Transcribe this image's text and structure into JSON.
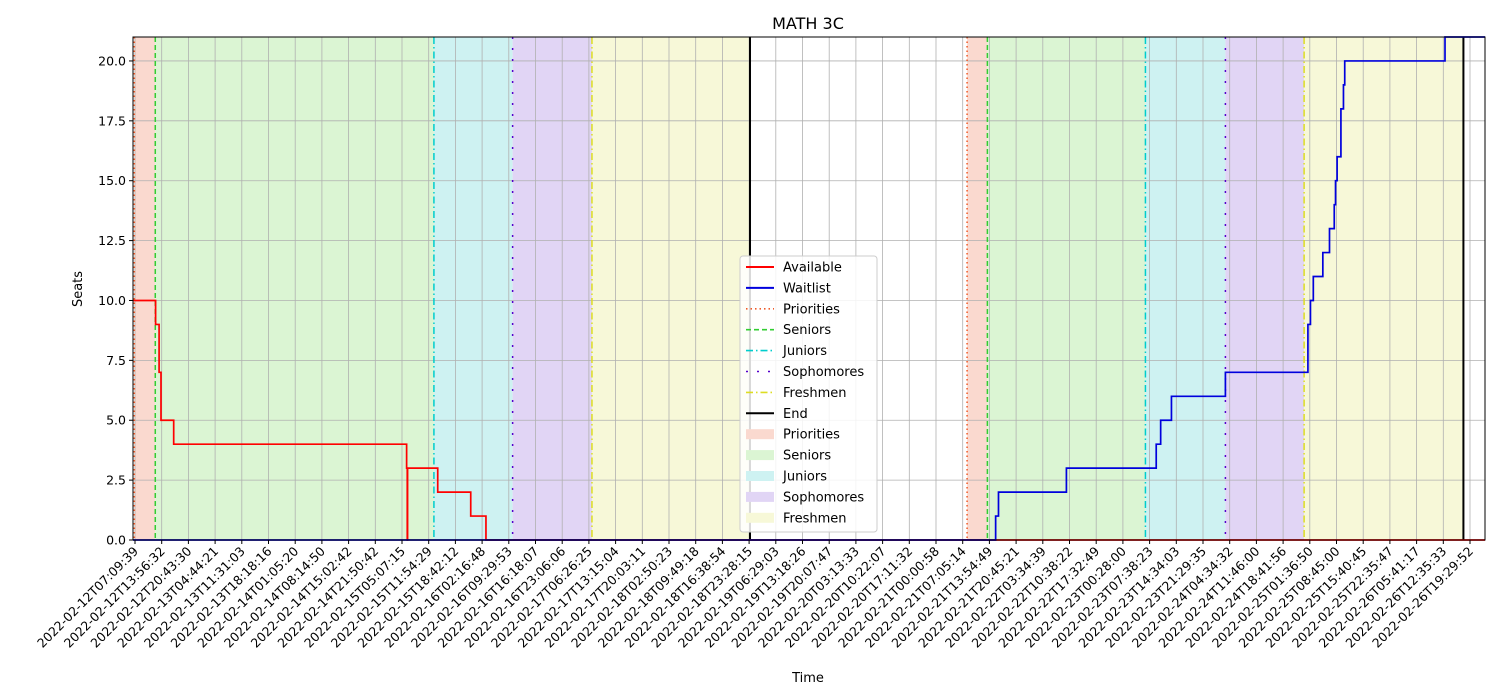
{
  "chart_data": {
    "type": "line",
    "title": "MATH 3C",
    "xlabel": "Time",
    "ylabel": "Seats",
    "ylim": [
      0,
      21
    ],
    "xlim": [
      "2022-02-12T05:49:00",
      "2022-02-27T00:50:00"
    ],
    "grid": true,
    "legend_position": "bottom-center",
    "y_ticks": [
      0.0,
      2.5,
      5.0,
      7.5,
      10.0,
      12.5,
      15.0,
      17.5,
      20.0
    ],
    "y_tick_labels": [
      "0.0",
      "2.5",
      "5.0",
      "7.5",
      "10.0",
      "12.5",
      "15.0",
      "17.5",
      "20.0"
    ],
    "x_tick_labels": [
      "2022-02-12T07:09:39",
      "2022-02-12T13:56:32",
      "2022-02-12T20:43:30",
      "2022-02-13T04:44:21",
      "2022-02-13T11:31:03",
      "2022-02-13T18:18:16",
      "2022-02-14T01:05:20",
      "2022-02-14T08:14:50",
      "2022-02-14T15:02:42",
      "2022-02-14T21:50:42",
      "2022-02-15T05:07:15",
      "2022-02-15T11:54:29",
      "2022-02-15T18:42:12",
      "2022-02-16T02:16:48",
      "2022-02-16T09:29:53",
      "2022-02-16T16:18:07",
      "2022-02-16T23:06:06",
      "2022-02-17T06:26:25",
      "2022-02-17T13:15:04",
      "2022-02-17T20:03:11",
      "2022-02-18T02:50:23",
      "2022-02-18T09:49:18",
      "2022-02-18T16:38:54",
      "2022-02-18T23:28:15",
      "2022-02-19T06:29:03",
      "2022-02-19T13:18:26",
      "2022-02-19T20:07:47",
      "2022-02-20T03:13:33",
      "2022-02-20T10:22:07",
      "2022-02-20T17:11:32",
      "2022-02-21T00:00:58",
      "2022-02-21T07:05:14",
      "2022-02-21T13:54:49",
      "2022-02-21T20:45:21",
      "2022-02-22T03:34:39",
      "2022-02-22T10:38:22",
      "2022-02-22T17:32:49",
      "2022-02-23T00:28:00",
      "2022-02-23T07:38:23",
      "2022-02-23T14:34:03",
      "2022-02-23T21:29:35",
      "2022-02-24T04:34:32",
      "2022-02-24T11:46:00",
      "2022-02-24T18:41:56",
      "2022-02-25T01:36:50",
      "2022-02-25T08:45:00",
      "2022-02-25T15:40:45",
      "2022-02-25T22:35:47",
      "2022-02-26T05:41:17",
      "2022-02-26T12:35:33",
      "2022-02-26T19:29:52"
    ],
    "colors": {
      "available": "#ff0000",
      "waitlist": "#0000dd",
      "priorities": "#f05a28",
      "seniors": "#32cd32",
      "juniors": "#00cdcd",
      "sophomores": "#5500cc",
      "freshmen": "#dddd22",
      "end": "#000000",
      "priorities_fill": "#fad9cf",
      "seniors_fill": "#dbf5d3",
      "juniors_fill": "#cef2f2",
      "sophomores_fill": "#e1d5f5",
      "freshmen_fill": "#f7f8d8",
      "grid": "#b0b0b0"
    },
    "legend": [
      {
        "label": "Available",
        "kind": "line",
        "style": "solid",
        "color_key": "available"
      },
      {
        "label": "Waitlist",
        "kind": "line",
        "style": "solid",
        "color_key": "waitlist"
      },
      {
        "label": "Priorities",
        "kind": "line",
        "style": "dotted",
        "color_key": "priorities"
      },
      {
        "label": "Seniors",
        "kind": "line",
        "style": "dashed",
        "color_key": "seniors"
      },
      {
        "label": "Juniors",
        "kind": "line",
        "style": "dashdot",
        "color_key": "juniors"
      },
      {
        "label": "Sophomores",
        "kind": "line",
        "style": "loosedash",
        "color_key": "sophomores"
      },
      {
        "label": "Freshmen",
        "kind": "line",
        "style": "dashdot",
        "color_key": "freshmen"
      },
      {
        "label": "End",
        "kind": "line",
        "style": "solid",
        "color_key": "end"
      },
      {
        "label": "Priorities",
        "kind": "patch",
        "color_key": "priorities_fill"
      },
      {
        "label": "Seniors",
        "kind": "patch",
        "color_key": "seniors_fill"
      },
      {
        "label": "Juniors",
        "kind": "patch",
        "color_key": "juniors_fill"
      },
      {
        "label": "Sophomores",
        "kind": "patch",
        "color_key": "sophomores_fill"
      },
      {
        "label": "Freshmen",
        "kind": "patch",
        "color_key": "freshmen_fill"
      }
    ],
    "periods": [
      {
        "phase": "Priorities",
        "start": "2022-02-12T06:10:00",
        "end": "2022-02-12T11:40:00"
      },
      {
        "phase": "Seniors",
        "start": "2022-02-12T11:40:00",
        "end": "2022-02-15T12:50:00"
      },
      {
        "phase": "Juniors",
        "start": "2022-02-15T12:50:00",
        "end": "2022-02-16T09:30:00"
      },
      {
        "phase": "Sophomores",
        "start": "2022-02-16T09:30:00",
        "end": "2022-02-17T06:20:00"
      },
      {
        "phase": "Freshmen",
        "start": "2022-02-17T06:20:00",
        "end": "2022-02-18T23:50:00"
      },
      {
        "phase": "End",
        "start": "2022-02-18T23:50:00",
        "end": "2022-02-18T23:50:00"
      },
      {
        "phase": "Priorities",
        "start": "2022-02-21T08:50:00",
        "end": "2022-02-21T14:10:00"
      },
      {
        "phase": "Seniors",
        "start": "2022-02-21T14:10:00",
        "end": "2022-02-23T07:40:00"
      },
      {
        "phase": "Juniors",
        "start": "2022-02-23T07:40:00",
        "end": "2022-02-24T04:40:00"
      },
      {
        "phase": "Sophomores",
        "start": "2022-02-24T04:40:00",
        "end": "2022-02-25T01:20:00"
      },
      {
        "phase": "Freshmen",
        "start": "2022-02-25T01:20:00",
        "end": "2022-02-26T19:10:00"
      },
      {
        "phase": "End",
        "start": "2022-02-26T19:10:00",
        "end": "2022-02-26T19:10:00"
      }
    ],
    "series": [
      {
        "name": "Available",
        "color_key": "available",
        "points": [
          [
            "2022-02-12T05:49:00",
            10
          ],
          [
            "2022-02-12T11:45:00",
            10
          ],
          [
            "2022-02-12T11:45:00",
            9
          ],
          [
            "2022-02-12T12:40:00",
            9
          ],
          [
            "2022-02-12T12:40:00",
            7
          ],
          [
            "2022-02-12T13:10:00",
            7
          ],
          [
            "2022-02-12T13:10:00",
            5
          ],
          [
            "2022-02-12T16:30:00",
            5
          ],
          [
            "2022-02-12T16:30:00",
            4
          ],
          [
            "2022-02-15T05:40:00",
            4
          ],
          [
            "2022-02-15T05:40:00",
            3
          ],
          [
            "2022-02-15T05:50:00",
            3
          ],
          [
            "2022-02-15T05:50:00",
            0
          ],
          [
            "2022-02-15T05:55:00",
            0
          ],
          [
            "2022-02-15T05:55:00",
            3
          ],
          [
            "2022-02-15T13:50:00",
            3
          ],
          [
            "2022-02-15T13:50:00",
            2
          ],
          [
            "2022-02-15T22:30:00",
            2
          ],
          [
            "2022-02-15T22:30:00",
            1
          ],
          [
            "2022-02-16T02:30:00",
            1
          ],
          [
            "2022-02-16T02:30:00",
            0
          ],
          [
            "2022-02-27T00:50:00",
            0
          ]
        ]
      },
      {
        "name": "Waitlist",
        "color_key": "waitlist",
        "points": [
          [
            "2022-02-12T05:49:00",
            0
          ],
          [
            "2022-02-21T16:20:00",
            0
          ],
          [
            "2022-02-21T16:20:00",
            1
          ],
          [
            "2022-02-21T17:05:00",
            1
          ],
          [
            "2022-02-21T17:05:00",
            2
          ],
          [
            "2022-02-22T10:55:00",
            2
          ],
          [
            "2022-02-22T10:55:00",
            3
          ],
          [
            "2022-02-23T10:30:00",
            3
          ],
          [
            "2022-02-23T10:30:00",
            4
          ],
          [
            "2022-02-23T11:40:00",
            4
          ],
          [
            "2022-02-23T11:40:00",
            5
          ],
          [
            "2022-02-23T14:30:00",
            5
          ],
          [
            "2022-02-23T14:30:00",
            6
          ],
          [
            "2022-02-24T04:40:00",
            6
          ],
          [
            "2022-02-24T04:40:00",
            7
          ],
          [
            "2022-02-25T02:20:00",
            7
          ],
          [
            "2022-02-25T02:20:00",
            9
          ],
          [
            "2022-02-25T03:00:00",
            9
          ],
          [
            "2022-02-25T03:00:00",
            10
          ],
          [
            "2022-02-25T03:45:00",
            10
          ],
          [
            "2022-02-25T03:45:00",
            11
          ],
          [
            "2022-02-25T06:15:00",
            11
          ],
          [
            "2022-02-25T06:15:00",
            12
          ],
          [
            "2022-02-25T08:00:00",
            12
          ],
          [
            "2022-02-25T08:00:00",
            13
          ],
          [
            "2022-02-25T09:15:00",
            13
          ],
          [
            "2022-02-25T09:15:00",
            14
          ],
          [
            "2022-02-25T09:35:00",
            14
          ],
          [
            "2022-02-25T09:35:00",
            15
          ],
          [
            "2022-02-25T10:00:00",
            15
          ],
          [
            "2022-02-25T10:00:00",
            16
          ],
          [
            "2022-02-25T11:00:00",
            16
          ],
          [
            "2022-02-25T11:00:00",
            18
          ],
          [
            "2022-02-25T11:40:00",
            18
          ],
          [
            "2022-02-25T11:40:00",
            19
          ],
          [
            "2022-02-25T12:00:00",
            19
          ],
          [
            "2022-02-25T12:00:00",
            20
          ],
          [
            "2022-02-26T14:20:00",
            20
          ],
          [
            "2022-02-26T14:20:00",
            21
          ],
          [
            "2022-02-27T00:50:00",
            21
          ]
        ]
      }
    ]
  }
}
